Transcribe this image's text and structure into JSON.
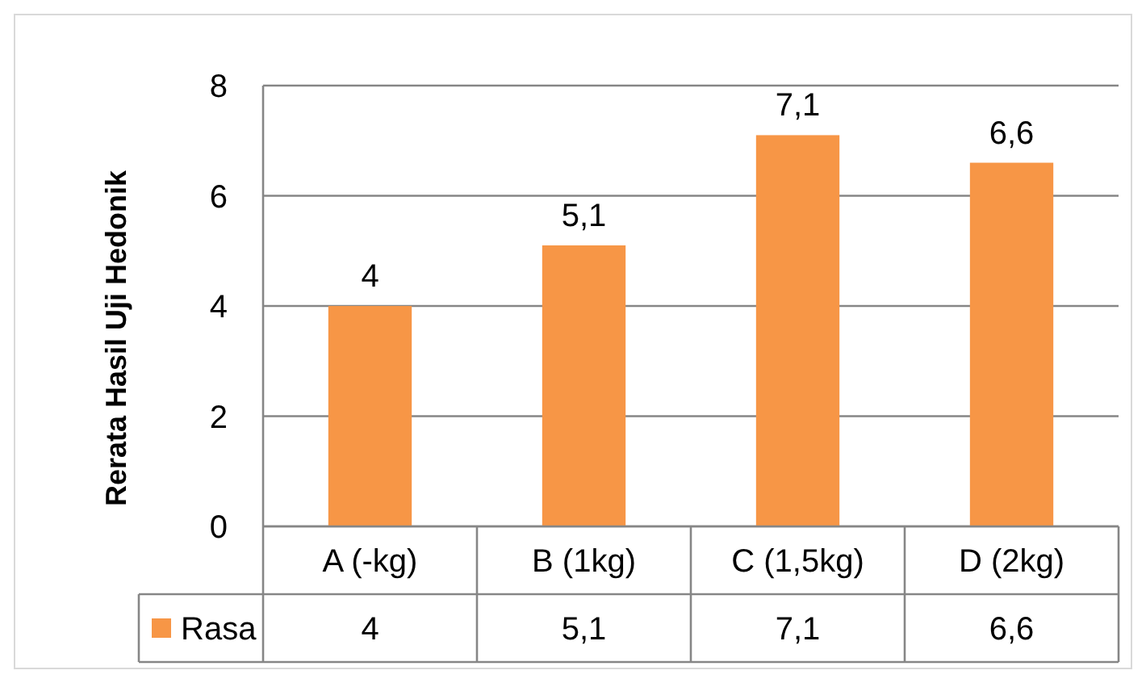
{
  "chart_data": {
    "type": "bar",
    "ylabel": "Rerata Hasil Uji Hedonik",
    "categories": [
      "A (-kg)",
      "B (1kg)",
      "C (1,5kg)",
      "D (2kg)"
    ],
    "series": [
      {
        "name": "Rasa",
        "color": "#f79646",
        "values": [
          4,
          5.1,
          7.1,
          6.6
        ],
        "value_labels": [
          "4",
          "5,1",
          "7,1",
          "6,6"
        ]
      }
    ],
    "ylim": [
      0,
      8
    ],
    "yticks": [
      0,
      2,
      4,
      6,
      8
    ],
    "grid": "y",
    "legend": "bottom"
  }
}
